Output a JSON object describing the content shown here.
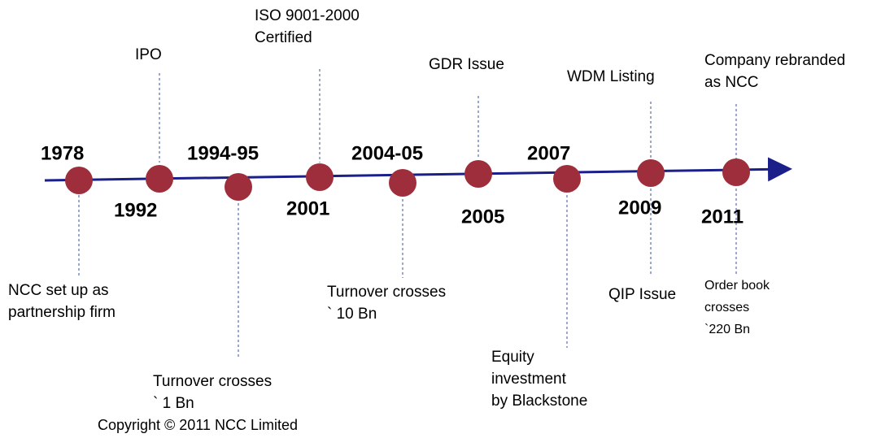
{
  "milestones": [
    {
      "year": "1978",
      "events": [
        {
          "lines": [
            "NCC set up as",
            "partnership firm"
          ]
        }
      ]
    },
    {
      "year": "1992",
      "events": [
        {
          "lines": [
            "IPO"
          ]
        }
      ]
    },
    {
      "year": "1994-95",
      "events": [
        {
          "lines": [
            "Turnover crosses",
            "` 1 Bn"
          ]
        }
      ]
    },
    {
      "year": "2001",
      "events": [
        {
          "lines": [
            "ISO 9001-2000",
            "Certified"
          ]
        }
      ]
    },
    {
      "year": "2004-05",
      "events": [
        {
          "lines": [
            "Turnover crosses",
            "` 10 Bn"
          ]
        }
      ]
    },
    {
      "year": "2005",
      "events": [
        {
          "lines": [
            "GDR Issue"
          ]
        }
      ]
    },
    {
      "year": "2007",
      "events": [
        {
          "lines": [
            "Equity",
            "investment",
            "by Blackstone"
          ]
        }
      ]
    },
    {
      "year": "2009",
      "events": [
        {
          "lines": [
            "WDM Listing"
          ]
        },
        {
          "lines": [
            "QIP Issue"
          ]
        }
      ]
    },
    {
      "year": "2011",
      "events": [
        {
          "lines": [
            "Company rebranded",
            "as NCC"
          ]
        },
        {
          "lines": [
            "Order book",
            "crosses",
            "`220 Bn"
          ]
        }
      ]
    }
  ],
  "copyright": "Copyright © 2011 NCC Limited"
}
